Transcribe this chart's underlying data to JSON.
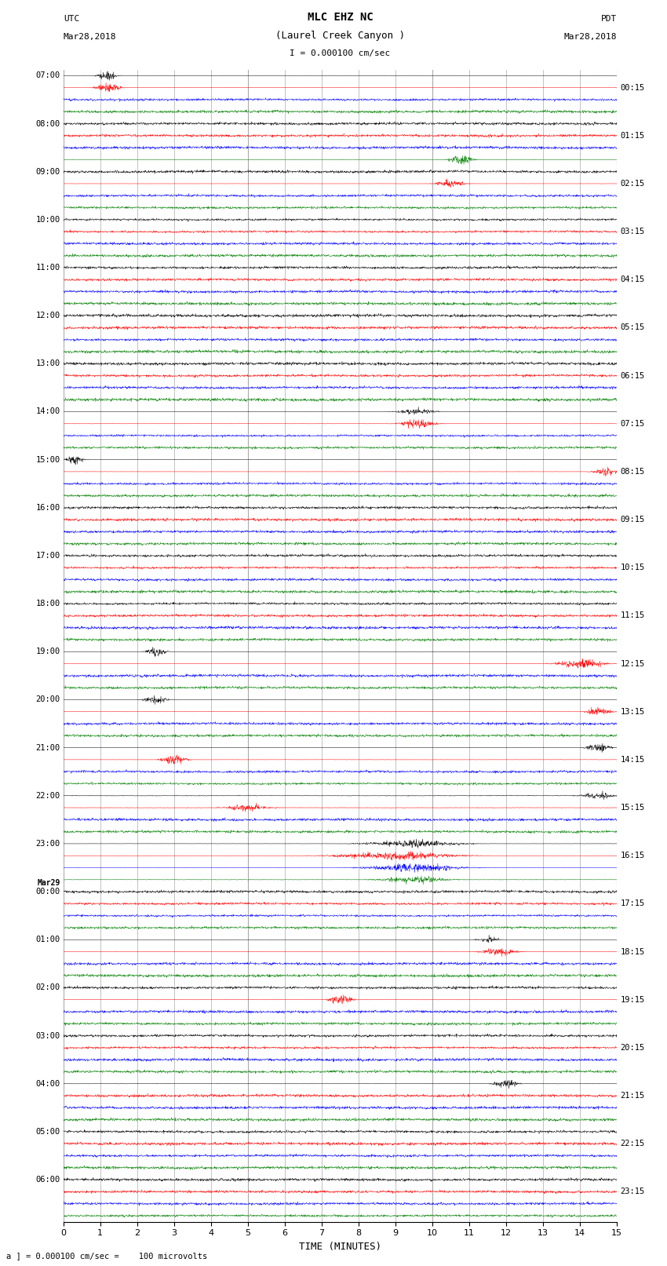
{
  "title_line1": "MLC EHZ NC",
  "title_line2": "(Laurel Creek Canyon )",
  "scale_label": "I = 0.000100 cm/sec",
  "utc_label": "UTC",
  "utc_date": "Mar28,2018",
  "pdt_label": "PDT",
  "pdt_date": "Mar28,2018",
  "bottom_label": "a ] = 0.000100 cm/sec =    100 microvolts",
  "xlabel": "TIME (MINUTES)",
  "left_times_utc": [
    "07:00",
    "08:00",
    "09:00",
    "10:00",
    "11:00",
    "12:00",
    "13:00",
    "14:00",
    "15:00",
    "16:00",
    "17:00",
    "18:00",
    "19:00",
    "20:00",
    "21:00",
    "22:00",
    "23:00",
    "Mar29",
    "00:00",
    "01:00",
    "02:00",
    "03:00",
    "04:00",
    "05:00",
    "06:00"
  ],
  "right_times_pdt": [
    "00:15",
    "01:15",
    "02:15",
    "03:15",
    "04:15",
    "05:15",
    "06:15",
    "07:15",
    "08:15",
    "09:15",
    "10:15",
    "11:15",
    "12:15",
    "13:15",
    "14:15",
    "15:15",
    "16:15",
    "17:15",
    "18:15",
    "19:15",
    "20:15",
    "21:15",
    "22:15",
    "23:15"
  ],
  "n_rows": 96,
  "row_colors": [
    "black",
    "red",
    "blue",
    "green"
  ],
  "bg_color": "#ffffff",
  "grid_color": "#aaaaaa",
  "fig_width": 8.5,
  "fig_height": 16.13,
  "dpi": 100,
  "xlim": [
    0,
    15
  ],
  "xticks": [
    0,
    1,
    2,
    3,
    4,
    5,
    6,
    7,
    8,
    9,
    10,
    11,
    12,
    13,
    14,
    15
  ]
}
